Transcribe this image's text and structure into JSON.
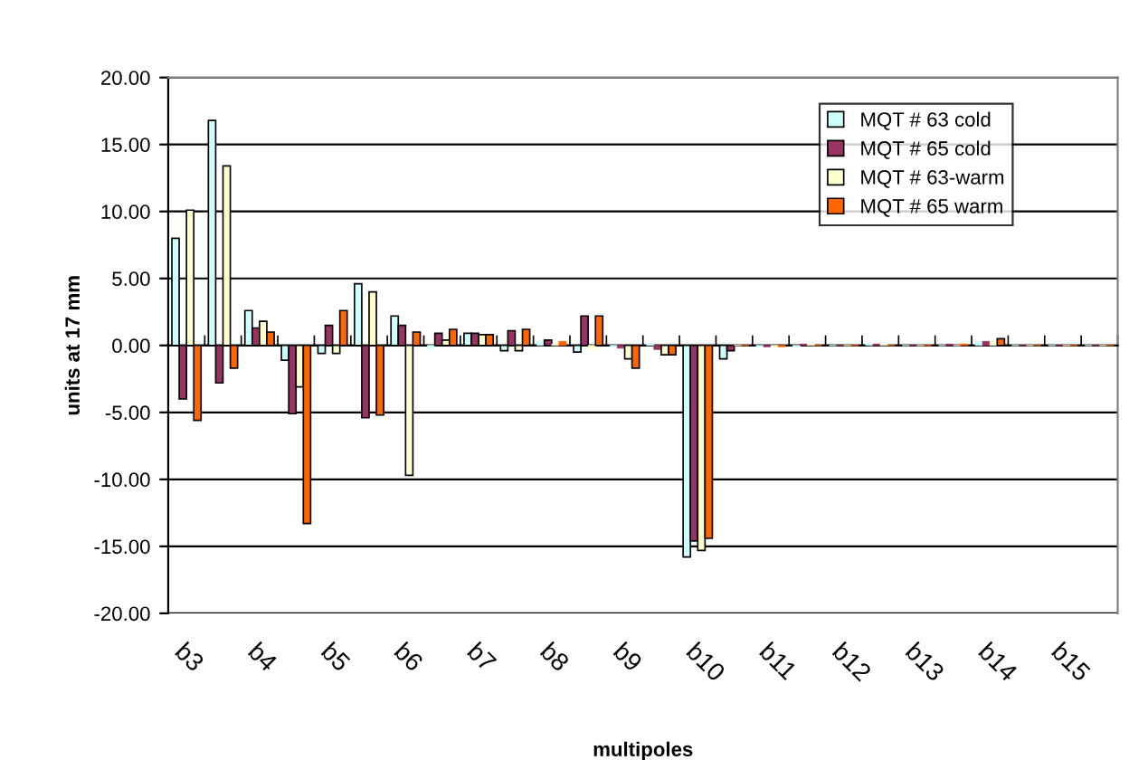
{
  "chart_data": {
    "type": "bar",
    "xlabel": "multipoles",
    "ylabel": "units at 17 mm",
    "categories": [
      "b3",
      null,
      "b4",
      null,
      "b5",
      null,
      "b6",
      null,
      "b7",
      null,
      "b8",
      null,
      "b9",
      null,
      "b10",
      null,
      "b11",
      null,
      "b12",
      null,
      "b13",
      null,
      "b14",
      null,
      "b15",
      null
    ],
    "series": [
      {
        "name": "MQT # 63 cold",
        "color": "#ccffff",
        "values": [
          8.0,
          16.8,
          2.6,
          -1.1,
          -0.6,
          4.6,
          2.2,
          -0.2,
          0.9,
          -0.4,
          0.3,
          -0.5,
          -0.1,
          0.1,
          -15.8,
          -1.0,
          -0.1,
          -0.1,
          0,
          0.1,
          0,
          0,
          0.3,
          0,
          0,
          0
        ]
      },
      {
        "name": "MQT # 65 cold",
        "color": "#993366",
        "values": [
          -4.0,
          -2.8,
          1.3,
          -5.1,
          1.5,
          -5.4,
          1.5,
          0.9,
          0.9,
          1.1,
          0.4,
          2.2,
          -0.2,
          -0.3,
          -14.6,
          -0.4,
          -0.1,
          0.1,
          0,
          0.1,
          0,
          0.1,
          0.3,
          0,
          0,
          0
        ]
      },
      {
        "name": "MQT # 63-warm",
        "color": "#ffffcc",
        "values": [
          10.1,
          13.4,
          1.8,
          -3.1,
          -0.6,
          4.0,
          -9.7,
          0.4,
          0.8,
          -0.4,
          0.1,
          -0.3,
          -1.0,
          -0.7,
          -15.3,
          0,
          -0.1,
          0.1,
          0,
          0.1,
          0,
          0,
          0.3,
          0,
          0,
          0
        ]
      },
      {
        "name": "MQT # 65 warm",
        "color": "#ff6600",
        "values": [
          -5.6,
          -1.7,
          1.0,
          -13.3,
          2.6,
          -5.2,
          1.0,
          1.2,
          0.8,
          1.2,
          0.3,
          2.2,
          -1.7,
          -0.7,
          -14.4,
          0,
          -0.1,
          0,
          0,
          0,
          0,
          0.1,
          0.5,
          0,
          0,
          0
        ]
      }
    ],
    "ylim": [
      -20,
      20
    ],
    "yticks": [
      {
        "value": -20,
        "label": "-20.00"
      },
      {
        "value": -15,
        "label": "-15.00"
      },
      {
        "value": -10,
        "label": "-10.00"
      },
      {
        "value": -5,
        "label": "-5.00"
      },
      {
        "value": 0,
        "label": "0.00"
      },
      {
        "value": 5,
        "label": "5.00"
      },
      {
        "value": 10,
        "label": "10.00"
      },
      {
        "value": 15,
        "label": "15.00"
      },
      {
        "value": 20,
        "label": "20.00"
      }
    ],
    "grid": "y",
    "legend": "top right"
  }
}
